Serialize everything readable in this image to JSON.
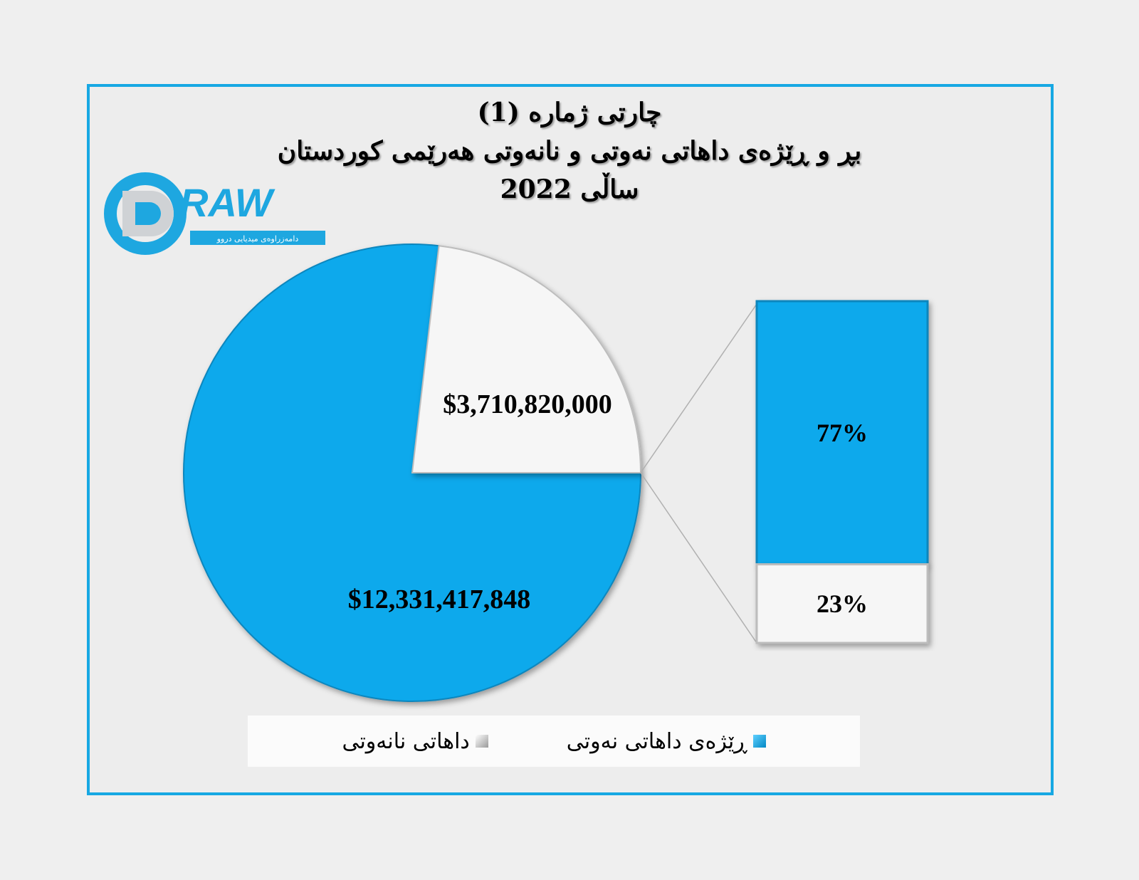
{
  "title_lines": [
    "چارتی ژمارە (1)",
    "بڕ و ڕێژەی داهاتی نەوتی و نانەوتی هەرێمی کوردستان",
    "ساڵی 2022"
  ],
  "logo": {
    "text": "DRAW",
    "subtitle": "دامەزراوەی میدیایی دروو"
  },
  "colors": {
    "frame": "#17a8e3",
    "oil": "#07a9ec",
    "non_oil": "#f6f6f6"
  },
  "chart_data": {
    "type": "pie",
    "subtype": "bar-of-pie",
    "categories": [
      "ڕێژەی داهاتی نەوتی",
      "داهاتی نانەوتی"
    ],
    "values": [
      12331417848,
      3710820000
    ],
    "value_labels": [
      "$12,331,417,848",
      "$3,710,820,000"
    ],
    "bar_percent_values": [
      77,
      23
    ],
    "bar_percent_labels": [
      "77%",
      "23%"
    ],
    "legend_position": "bottom"
  }
}
